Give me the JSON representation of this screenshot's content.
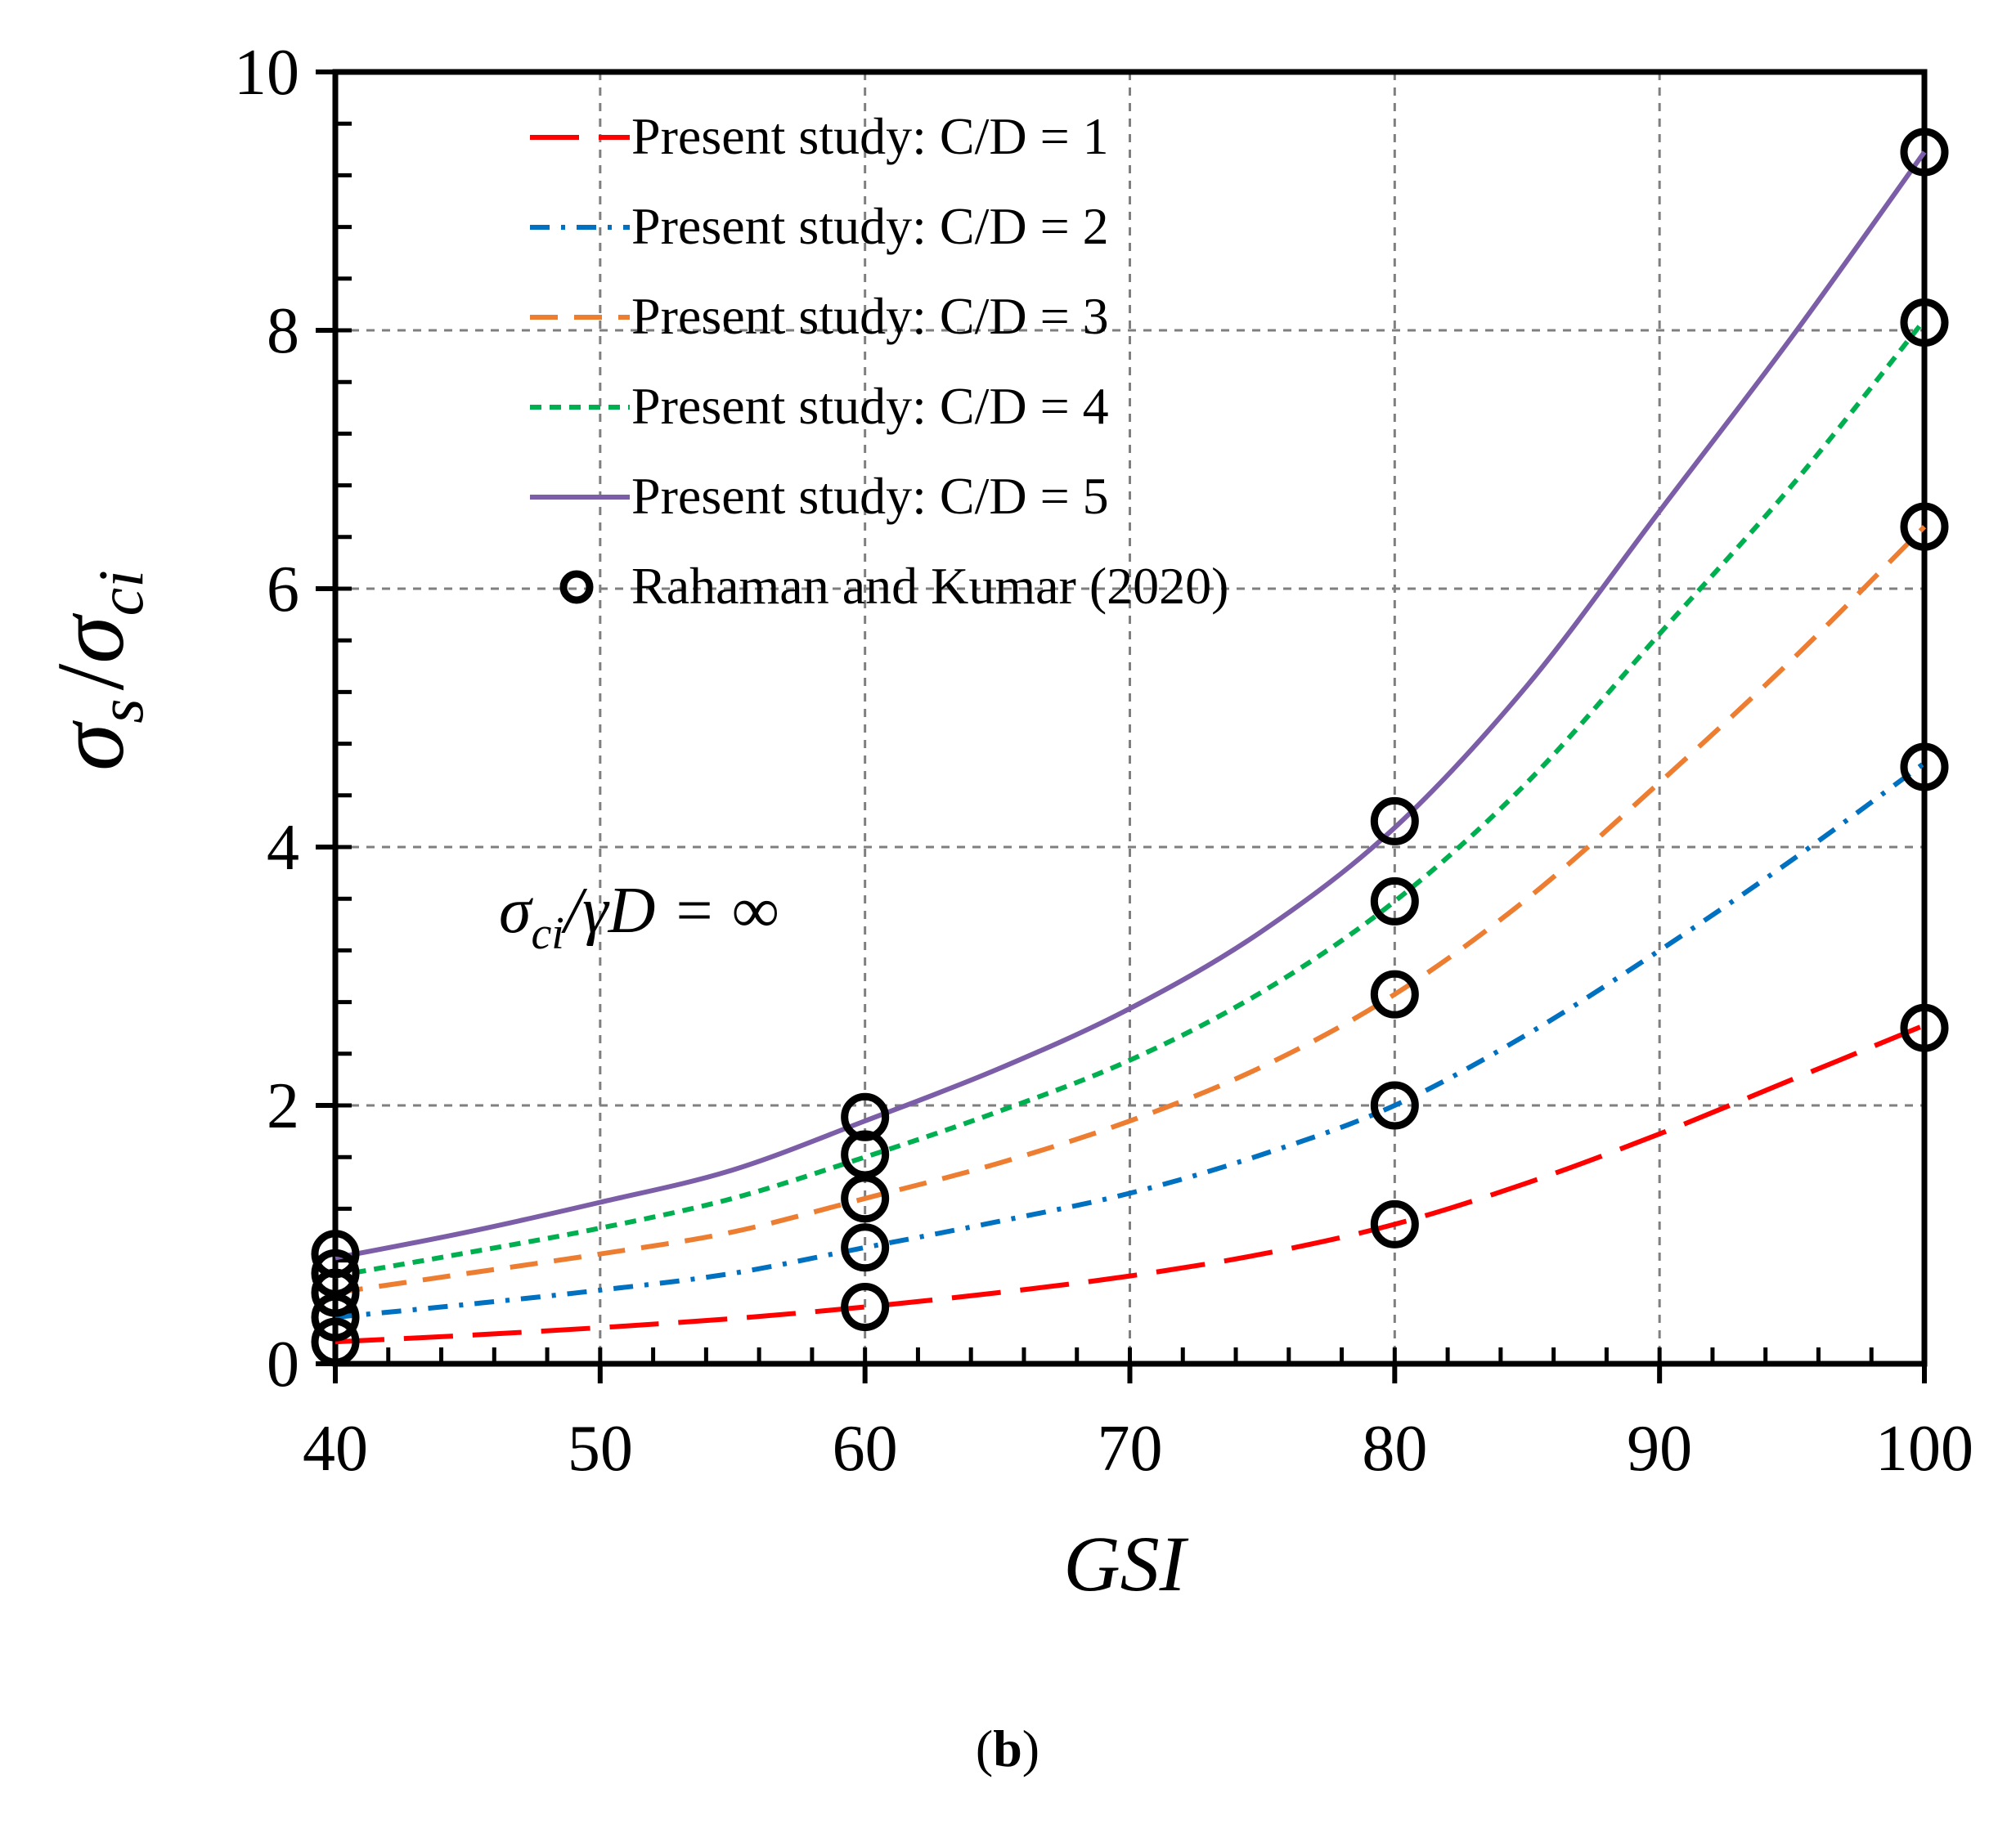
{
  "chart_data": {
    "type": "line",
    "xlabel": "GSI",
    "ylabel": {
      "numerator": "σ",
      "numerator_sub": "s",
      "slash": "/",
      "denominator": "σ",
      "denominator_sub": "ci"
    },
    "xlim": [
      40,
      100
    ],
    "ylim": [
      0,
      10
    ],
    "xticks": [
      40,
      50,
      60,
      70,
      80,
      90,
      100
    ],
    "yticks": [
      0,
      2,
      4,
      6,
      8,
      10
    ],
    "grid": true,
    "legend_position": "top-left",
    "annotation": {
      "text": "σci/γD = ∞",
      "part1": "σ",
      "part1_sub": "ci",
      "part2": "/γD = ∞"
    },
    "panel_label": {
      "open": "(",
      "letter": "b",
      "close": ")"
    },
    "series": [
      {
        "name": "Present study: C/D = 1",
        "color": "#ff0000",
        "style": "longdash",
        "x": [
          40,
          45,
          50,
          55,
          60,
          65,
          70,
          75,
          80,
          85,
          90,
          95,
          100
        ],
        "y": [
          0.17,
          0.22,
          0.28,
          0.35,
          0.44,
          0.55,
          0.68,
          0.85,
          1.08,
          1.4,
          1.78,
          2.2,
          2.62
        ]
      },
      {
        "name": "Present study: C/D = 2",
        "color": "#0070c0",
        "style": "dashdot",
        "x": [
          40,
          45,
          50,
          55,
          60,
          65,
          70,
          75,
          80,
          85,
          90,
          95,
          100
        ],
        "y": [
          0.36,
          0.46,
          0.57,
          0.7,
          0.9,
          1.1,
          1.32,
          1.62,
          2.0,
          2.55,
          3.2,
          3.9,
          4.65
        ]
      },
      {
        "name": "Present study: C/D = 3",
        "color": "#ed7d31",
        "style": "dash",
        "x": [
          40,
          45,
          50,
          55,
          60,
          65,
          70,
          75,
          80,
          85,
          90,
          95,
          100
        ],
        "y": [
          0.55,
          0.7,
          0.85,
          1.02,
          1.28,
          1.55,
          1.88,
          2.3,
          2.86,
          3.6,
          4.5,
          5.45,
          6.48
        ]
      },
      {
        "name": "Present study: C/D = 4",
        "color": "#00b050",
        "style": "shortdash",
        "x": [
          40,
          45,
          50,
          55,
          60,
          65,
          70,
          75,
          80,
          85,
          90,
          95,
          100
        ],
        "y": [
          0.68,
          0.86,
          1.05,
          1.28,
          1.6,
          1.95,
          2.35,
          2.88,
          3.58,
          4.5,
          5.65,
          6.8,
          8.08
        ]
      },
      {
        "name": "Present study: C/D = 5",
        "color": "#7b5ea7",
        "style": "solid",
        "x": [
          40,
          45,
          50,
          55,
          60,
          65,
          70,
          75,
          80,
          85,
          90,
          95,
          100
        ],
        "y": [
          0.82,
          1.02,
          1.25,
          1.5,
          1.88,
          2.28,
          2.75,
          3.35,
          4.15,
          5.25,
          6.6,
          7.95,
          9.38
        ]
      },
      {
        "name": "Rahaman and Kumar (2020)",
        "color": "#000000",
        "style": "markers",
        "x": [
          40,
          40,
          40,
          40,
          40,
          60,
          60,
          60,
          60,
          60,
          80,
          80,
          80,
          80,
          80,
          100,
          100,
          100,
          100,
          100
        ],
        "y": [
          0.17,
          0.36,
          0.55,
          0.7,
          0.85,
          0.44,
          0.9,
          1.28,
          1.62,
          1.91,
          1.08,
          2.0,
          2.86,
          3.58,
          4.2,
          2.6,
          4.62,
          6.48,
          8.06,
          9.38
        ]
      }
    ]
  }
}
